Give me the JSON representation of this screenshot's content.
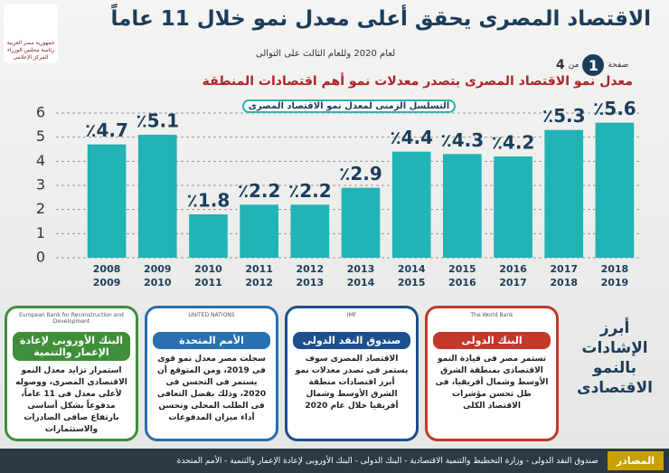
{
  "header": {
    "title": "الاقتصاد المصرى يحقق أعلى معدل نمو خلال 11 عاماً",
    "subtitle": "لعام 2020 وللعام الثالث على التوالى",
    "headline": "معدل نمو الاقتصاد المصرى يتصدر معدلات نمو أهم اقتصادات المنطقة",
    "page_word": "صفحة",
    "page": "1",
    "of_word": "من",
    "pages": "4"
  },
  "logo": {
    "line1": "جمهورية مصر العربية",
    "line2": "رئاسة مجلس الوزراء",
    "line3": "المركز الإعلامى"
  },
  "chart_data": {
    "type": "bar",
    "title": "التسلسل الزمنى لمعدل نمو الاقتصاد المصرى",
    "categories": [
      [
        "2008",
        "2009"
      ],
      [
        "2009",
        "2010"
      ],
      [
        "2010",
        "2011"
      ],
      [
        "2011",
        "2012"
      ],
      [
        "2012",
        "2013"
      ],
      [
        "2013",
        "2014"
      ],
      [
        "2014",
        "2015"
      ],
      [
        "2015",
        "2016"
      ],
      [
        "2016",
        "2017"
      ],
      [
        "2017",
        "2018"
      ],
      [
        "2018",
        "2019"
      ]
    ],
    "values": [
      4.7,
      5.1,
      1.8,
      2.2,
      2.2,
      2.9,
      4.4,
      4.3,
      4.2,
      5.3,
      5.6
    ],
    "value_labels": [
      "٪4.7",
      "٪5.1",
      "٪1.8",
      "٪2.2",
      "٪2.2",
      "٪2.9",
      "٪4.4",
      "٪4.3",
      "٪4.2",
      "٪5.3",
      "٪5.6"
    ],
    "color": "#22b3b5",
    "ylim": [
      0,
      6
    ],
    "yticks": [
      0,
      1,
      2,
      3,
      4,
      5,
      6
    ],
    "grid": true
  },
  "side_title": "أبرز الإشادات بالنمو الاقتصادى",
  "panels": [
    {
      "name": "البنك الأوروبى لإعادة الإعمار والتنمية",
      "logo": "European Bank for Reconstruction and Development",
      "color": "#3f8f3a",
      "text": "استمرار تزايد معدل النمو الاقتصادى المصرى، ووصوله لأعلى معدل فى 11 عاماً، مدفوعاً بشكل أساسى بارتفاع صافى الصادرات والاستثمارات"
    },
    {
      "name": "الأمم المتحدة",
      "logo": "UNITED NATIONS",
      "color": "#2a6fb0",
      "text": "سجلت مصر معدل نمو قوى فى 2019، ومن المتوقع أن يستمر فى التحسن فى 2020، وذلك بفضل التعافى فى الطلب المحلى وتحسن أداء ميزان المدفوعات"
    },
    {
      "name": "صندوق النقد الدولى",
      "logo": "IMF",
      "color": "#1d4f8c",
      "text": "الاقتصاد المصرى سوف يستمر فى تصدر معدلات نمو أبرز اقتصادات منطقة الشرق الأوسط وشمال أفريقيا خلال عام 2020"
    },
    {
      "name": "البنك الدولى",
      "logo": "The World Bank",
      "color": "#c0392b",
      "text": "تستمر مصر فى قيادة النمو الاقتصادى بمنطقة الشرق الأوسط وشمال أفريقيا، فى ظل تحسن مؤشرات الاقتصاد الكلى"
    }
  ],
  "footer": {
    "label": "المصادر",
    "text": "صندوق النقد الدولى - وزارة التخطيط والتنمية الاقتصادية - البنك الدولى - البنك الأوروبى لإعادة الإعمار والتنمية - الأمم المتحدة"
  }
}
